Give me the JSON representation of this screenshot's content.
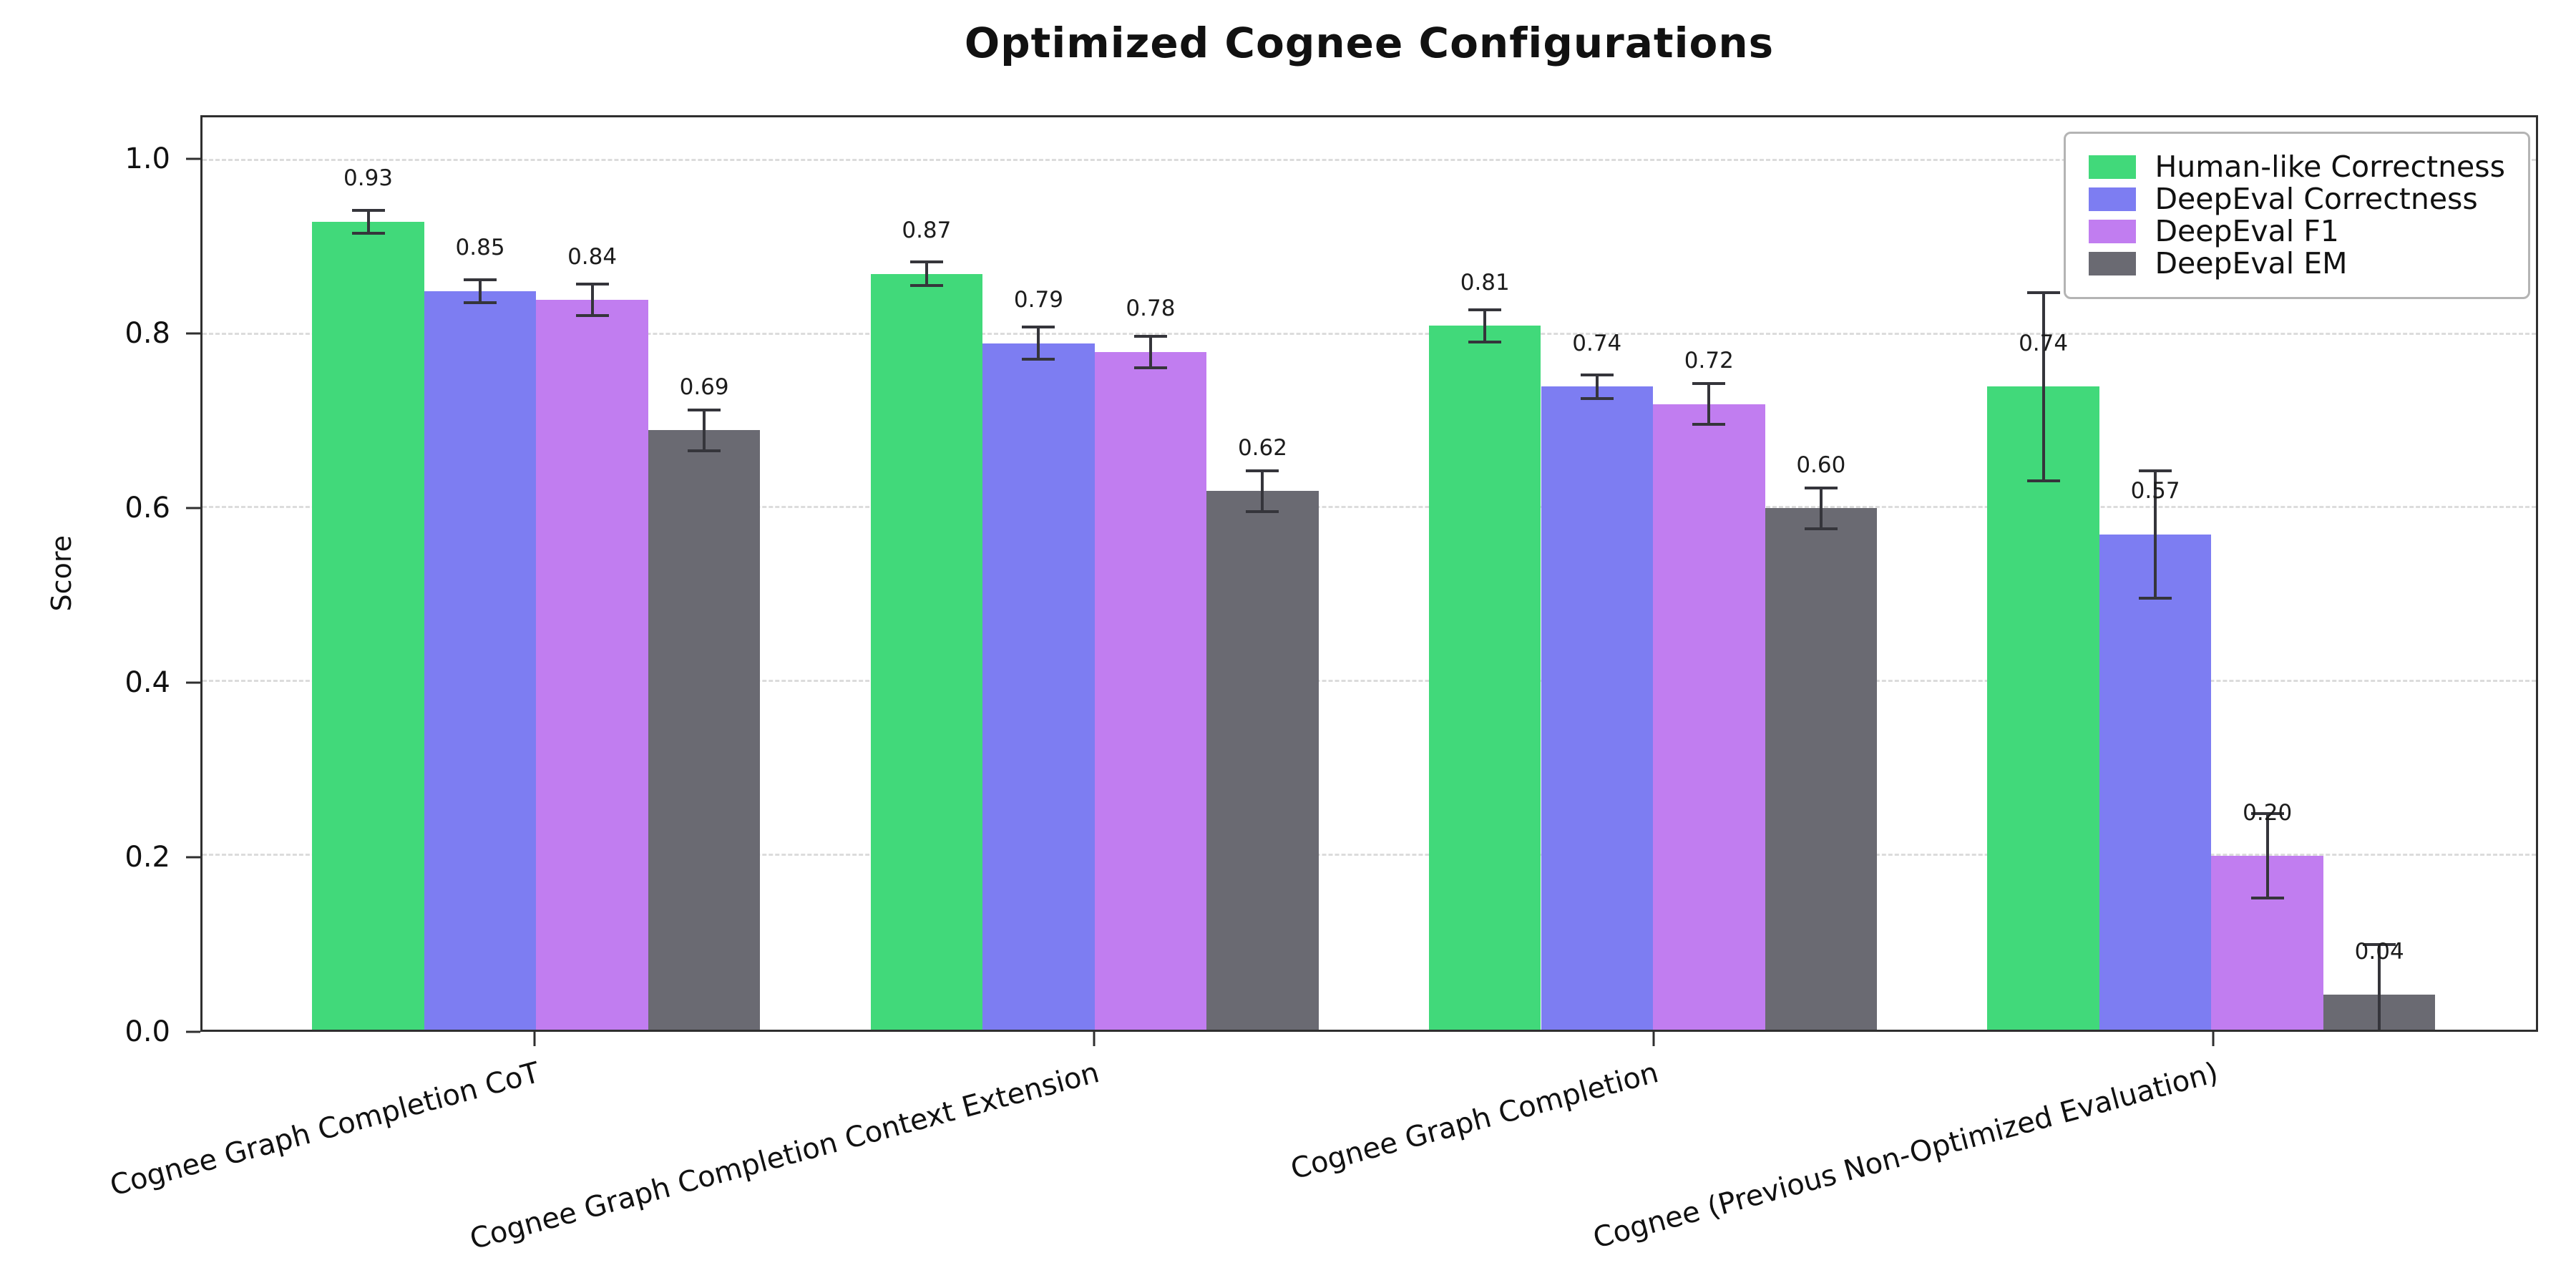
{
  "chart_data": {
    "type": "bar",
    "title": "Optimized Cognee Configurations",
    "xlabel": "",
    "ylabel": "Score",
    "ylim": [
      0,
      1.05
    ],
    "yticks": [
      0.0,
      0.2,
      0.4,
      0.6,
      0.8,
      1.0
    ],
    "grid": "dashed-horizontal",
    "legend_position": "upper right",
    "error_bar_color": "#35353b",
    "categories": [
      "Cognee Graph Completion CoT",
      "Cognee Graph Completion Context Extension",
      "Cognee Graph Completion",
      "Cognee (Previous Non-Optimized Evaluation)"
    ],
    "series": [
      {
        "name": "Human-like Correctness",
        "color": "#41d97a",
        "values": [
          0.93,
          0.87,
          0.81,
          0.74
        ],
        "errors": [
          0.015,
          0.015,
          0.02,
          0.11
        ]
      },
      {
        "name": "DeepEval Correctness",
        "color": "#7d7df2",
        "values": [
          0.85,
          0.79,
          0.74,
          0.57
        ],
        "errors": [
          0.015,
          0.02,
          0.015,
          0.075
        ]
      },
      {
        "name": "DeepEval F1",
        "color": "#c17df0",
        "values": [
          0.84,
          0.78,
          0.72,
          0.2
        ],
        "errors": [
          0.02,
          0.02,
          0.025,
          0.05
        ]
      },
      {
        "name": "DeepEval EM",
        "color": "#6a6a72",
        "values": [
          0.69,
          0.62,
          0.6,
          0.04
        ],
        "errors": [
          0.025,
          0.025,
          0.025,
          0.06
        ]
      }
    ],
    "value_label_format": "0.00"
  }
}
